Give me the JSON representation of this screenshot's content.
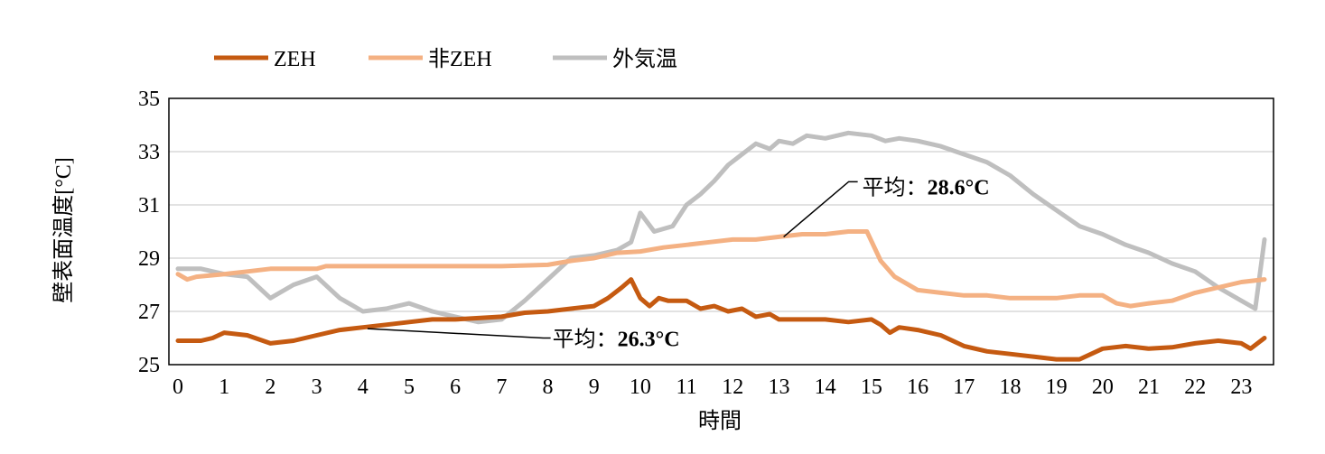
{
  "chart_data": {
    "type": "line",
    "xlabel": "時間",
    "ylabel": "壁表面温度[°C]",
    "xlim": [
      0,
      23.5
    ],
    "ylim": [
      25,
      35
    ],
    "x_ticks": [
      0,
      1,
      2,
      3,
      4,
      5,
      6,
      7,
      8,
      9,
      10,
      11,
      12,
      13,
      14,
      15,
      16,
      17,
      18,
      19,
      20,
      21,
      22,
      23
    ],
    "y_ticks": [
      25,
      27,
      29,
      31,
      33,
      35
    ],
    "grid": "horizontal",
    "legend_position": "top-left",
    "series": [
      {
        "name": "ZEH",
        "color": "#c55a11",
        "points": [
          [
            0,
            25.9
          ],
          [
            0.5,
            25.9
          ],
          [
            0.75,
            26.0
          ],
          [
            1,
            26.2
          ],
          [
            1.5,
            26.1
          ],
          [
            2,
            25.8
          ],
          [
            2.5,
            25.9
          ],
          [
            3,
            26.1
          ],
          [
            3.5,
            26.3
          ],
          [
            4,
            26.4
          ],
          [
            4.5,
            26.5
          ],
          [
            5,
            26.6
          ],
          [
            5.5,
            26.7
          ],
          [
            6,
            26.7
          ],
          [
            6.5,
            26.75
          ],
          [
            7,
            26.8
          ],
          [
            7.5,
            26.95
          ],
          [
            8,
            27.0
          ],
          [
            8.5,
            27.1
          ],
          [
            9,
            27.2
          ],
          [
            9.3,
            27.5
          ],
          [
            9.6,
            27.9
          ],
          [
            9.8,
            28.2
          ],
          [
            10,
            27.5
          ],
          [
            10.2,
            27.2
          ],
          [
            10.4,
            27.5
          ],
          [
            10.6,
            27.4
          ],
          [
            11,
            27.4
          ],
          [
            11.3,
            27.1
          ],
          [
            11.6,
            27.2
          ],
          [
            11.9,
            27.0
          ],
          [
            12.2,
            27.1
          ],
          [
            12.5,
            26.8
          ],
          [
            12.8,
            26.9
          ],
          [
            13,
            26.7
          ],
          [
            13.5,
            26.7
          ],
          [
            14,
            26.7
          ],
          [
            14.5,
            26.6
          ],
          [
            15,
            26.7
          ],
          [
            15.2,
            26.5
          ],
          [
            15.4,
            26.2
          ],
          [
            15.6,
            26.4
          ],
          [
            16,
            26.3
          ],
          [
            16.5,
            26.1
          ],
          [
            17,
            25.7
          ],
          [
            17.5,
            25.5
          ],
          [
            18,
            25.4
          ],
          [
            18.5,
            25.3
          ],
          [
            19,
            25.2
          ],
          [
            19.5,
            25.2
          ],
          [
            20,
            25.6
          ],
          [
            20.5,
            25.7
          ],
          [
            21,
            25.6
          ],
          [
            21.5,
            25.65
          ],
          [
            22,
            25.8
          ],
          [
            22.5,
            25.9
          ],
          [
            23,
            25.8
          ],
          [
            23.2,
            25.6
          ],
          [
            23.5,
            26.0
          ]
        ]
      },
      {
        "name": "非ZEH",
        "color": "#f4b183",
        "points": [
          [
            0,
            28.4
          ],
          [
            0.2,
            28.2
          ],
          [
            0.4,
            28.3
          ],
          [
            1,
            28.4
          ],
          [
            1.5,
            28.5
          ],
          [
            2,
            28.6
          ],
          [
            3,
            28.6
          ],
          [
            3.2,
            28.7
          ],
          [
            4,
            28.7
          ],
          [
            5,
            28.7
          ],
          [
            6,
            28.7
          ],
          [
            7,
            28.7
          ],
          [
            8,
            28.75
          ],
          [
            8.5,
            28.9
          ],
          [
            9,
            29.0
          ],
          [
            9.5,
            29.2
          ],
          [
            10,
            29.25
          ],
          [
            10.5,
            29.4
          ],
          [
            11,
            29.5
          ],
          [
            11.5,
            29.6
          ],
          [
            12,
            29.7
          ],
          [
            12.5,
            29.7
          ],
          [
            13,
            29.8
          ],
          [
            13.5,
            29.9
          ],
          [
            14,
            29.9
          ],
          [
            14.5,
            30.0
          ],
          [
            14.9,
            30.0
          ],
          [
            15.2,
            28.9
          ],
          [
            15.5,
            28.3
          ],
          [
            16,
            27.8
          ],
          [
            16.5,
            27.7
          ],
          [
            17,
            27.6
          ],
          [
            17.5,
            27.6
          ],
          [
            18,
            27.5
          ],
          [
            18.5,
            27.5
          ],
          [
            19,
            27.5
          ],
          [
            19.5,
            27.6
          ],
          [
            20,
            27.6
          ],
          [
            20.3,
            27.3
          ],
          [
            20.6,
            27.2
          ],
          [
            21,
            27.3
          ],
          [
            21.5,
            27.4
          ],
          [
            22,
            27.7
          ],
          [
            22.5,
            27.9
          ],
          [
            23,
            28.1
          ],
          [
            23.5,
            28.2
          ]
        ]
      },
      {
        "name": "外気温",
        "color": "#bfbfbf",
        "points": [
          [
            0,
            28.6
          ],
          [
            0.5,
            28.6
          ],
          [
            1,
            28.4
          ],
          [
            1.5,
            28.3
          ],
          [
            2,
            27.5
          ],
          [
            2.5,
            28.0
          ],
          [
            3,
            28.3
          ],
          [
            3.5,
            27.5
          ],
          [
            4,
            27.0
          ],
          [
            4.5,
            27.1
          ],
          [
            5,
            27.3
          ],
          [
            5.5,
            27.0
          ],
          [
            6,
            26.8
          ],
          [
            6.5,
            26.6
          ],
          [
            7,
            26.7
          ],
          [
            7.5,
            27.4
          ],
          [
            8,
            28.2
          ],
          [
            8.5,
            29.0
          ],
          [
            9,
            29.1
          ],
          [
            9.5,
            29.3
          ],
          [
            9.8,
            29.6
          ],
          [
            10,
            30.7
          ],
          [
            10.3,
            30.0
          ],
          [
            10.7,
            30.2
          ],
          [
            11,
            31.0
          ],
          [
            11.3,
            31.4
          ],
          [
            11.6,
            31.9
          ],
          [
            11.9,
            32.5
          ],
          [
            12.2,
            32.9
          ],
          [
            12.5,
            33.3
          ],
          [
            12.8,
            33.1
          ],
          [
            13,
            33.4
          ],
          [
            13.3,
            33.3
          ],
          [
            13.6,
            33.6
          ],
          [
            14,
            33.5
          ],
          [
            14.5,
            33.7
          ],
          [
            15,
            33.6
          ],
          [
            15.3,
            33.4
          ],
          [
            15.6,
            33.5
          ],
          [
            16,
            33.4
          ],
          [
            16.5,
            33.2
          ],
          [
            17,
            32.9
          ],
          [
            17.5,
            32.6
          ],
          [
            18,
            32.1
          ],
          [
            18.5,
            31.4
          ],
          [
            19,
            30.8
          ],
          [
            19.5,
            30.2
          ],
          [
            20,
            29.9
          ],
          [
            20.5,
            29.5
          ],
          [
            21,
            29.2
          ],
          [
            21.5,
            28.8
          ],
          [
            22,
            28.5
          ],
          [
            22.5,
            27.9
          ],
          [
            23,
            27.4
          ],
          [
            23.3,
            27.1
          ],
          [
            23.5,
            29.7
          ]
        ]
      }
    ],
    "annotations": [
      {
        "label": "平均：",
        "value": "26.3°C",
        "target": [
          4.1,
          26.35
        ],
        "text_pos": [
          8.1,
          26.0
        ]
      },
      {
        "label": "平均：",
        "value": "28.6°C",
        "target": [
          13.1,
          29.8
        ],
        "text_pos": [
          14.8,
          31.7
        ]
      }
    ]
  }
}
